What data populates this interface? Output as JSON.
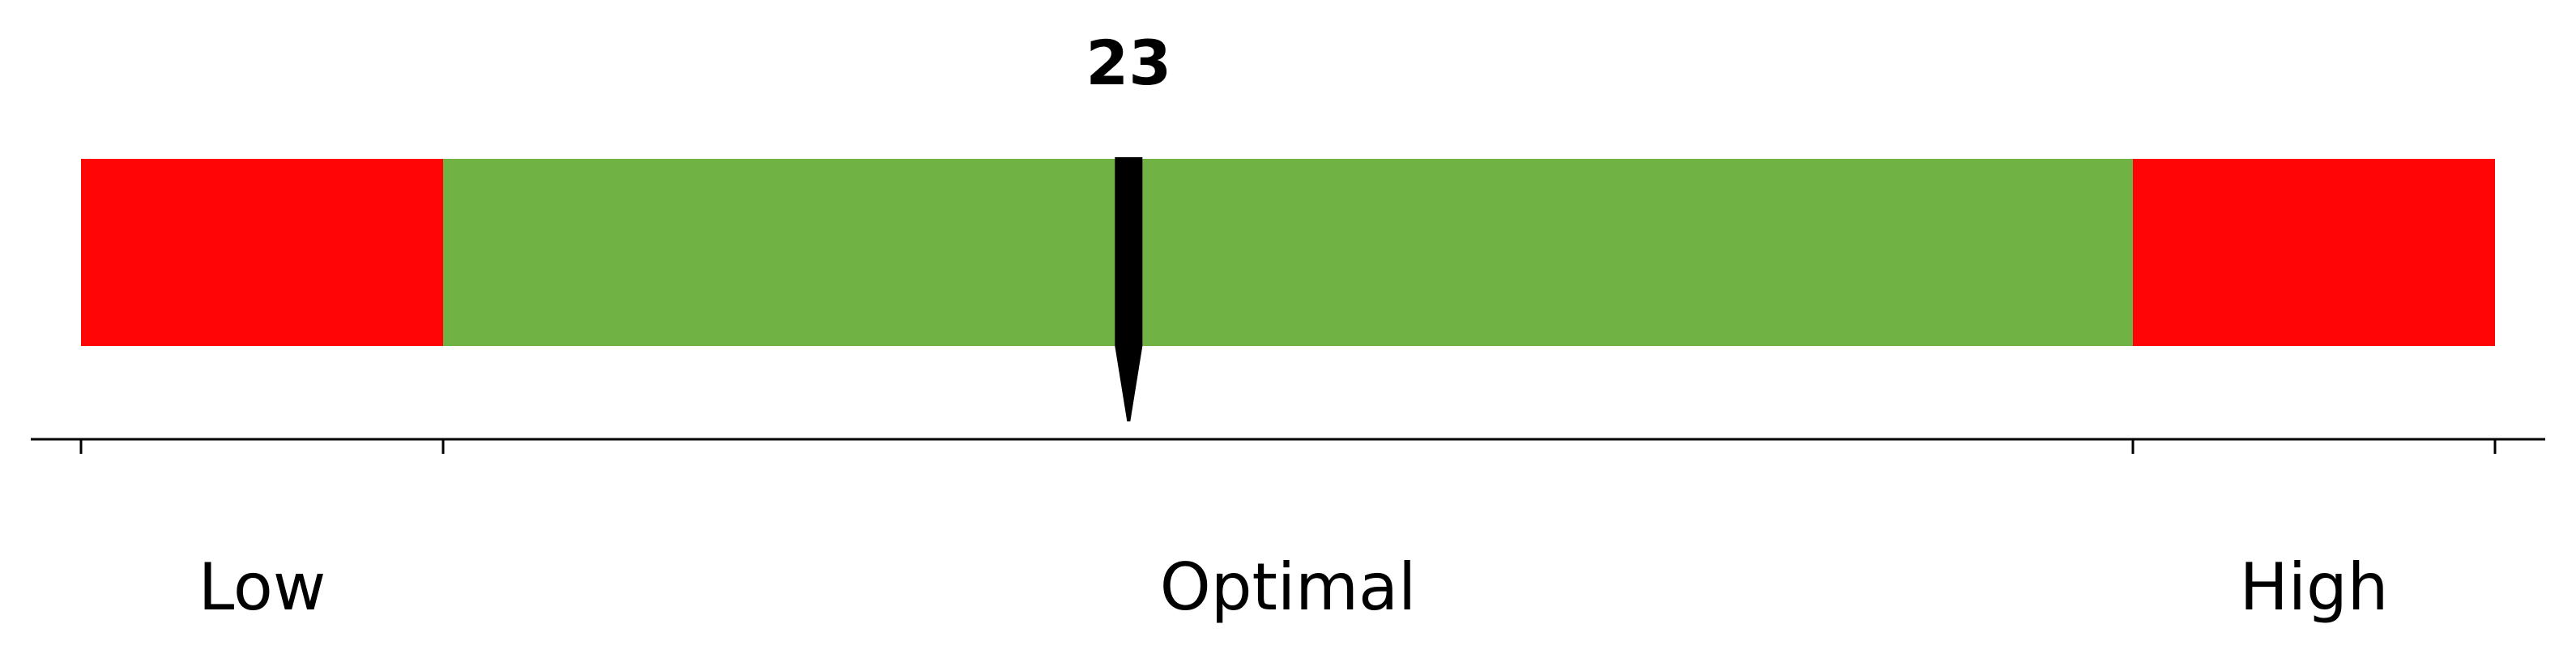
{
  "chart_data": {
    "type": "bar",
    "orientation": "horizontal",
    "xlim": [
      0,
      100
    ],
    "segments": [
      {
        "label": "Low",
        "start": 0,
        "end": 15,
        "color": "#ff0505"
      },
      {
        "label": "Optimal",
        "start": 15,
        "end": 85,
        "color": "#71b245"
      },
      {
        "label": "High",
        "start": 85,
        "end": 100,
        "color": "#ff0505"
      }
    ],
    "marker": {
      "value": 43.4,
      "label": "23",
      "color": "#000000"
    },
    "ticks": [
      0,
      15,
      85,
      100
    ],
    "grid": false,
    "title": "",
    "xlabel": "",
    "ylabel": ""
  }
}
